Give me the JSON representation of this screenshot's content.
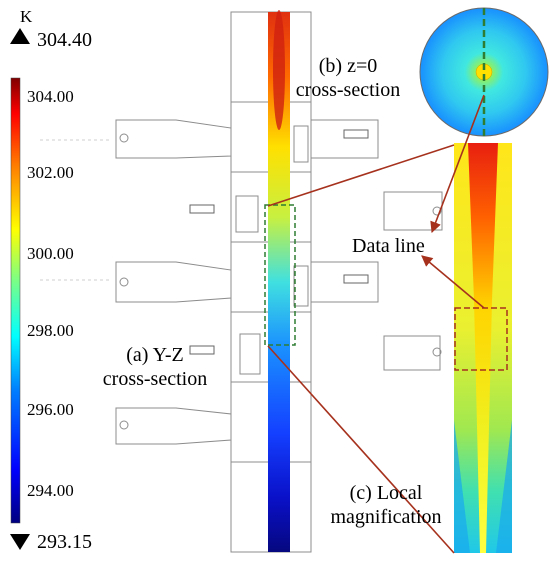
{
  "colorbar": {
    "unit": "K",
    "max_label": "304.40",
    "min_label": "293.15",
    "ticks": [
      "304.00",
      "302.00",
      "300.00",
      "298.00",
      "296.00",
      "294.00"
    ],
    "colormap": [
      "#00007f",
      "#0000ff",
      "#0080ff",
      "#00ffff",
      "#80ff80",
      "#ffff00",
      "#ff8000",
      "#ff0000",
      "#800000"
    ]
  },
  "labels": {
    "panel_a_line1": "(a) Y-Z",
    "panel_a_line2": "cross-section",
    "panel_b_line1": "(b) z=0",
    "panel_b_line2": "cross-section",
    "data_line": "Data line",
    "panel_c_line1": "(c) Local",
    "panel_c_line2": "magnification"
  },
  "colors": {
    "callout_arrow": "#a6321e",
    "data_line_dash": "#2e7d32",
    "box_dash": "#a6321e",
    "outline": "#8c8c8c"
  }
}
